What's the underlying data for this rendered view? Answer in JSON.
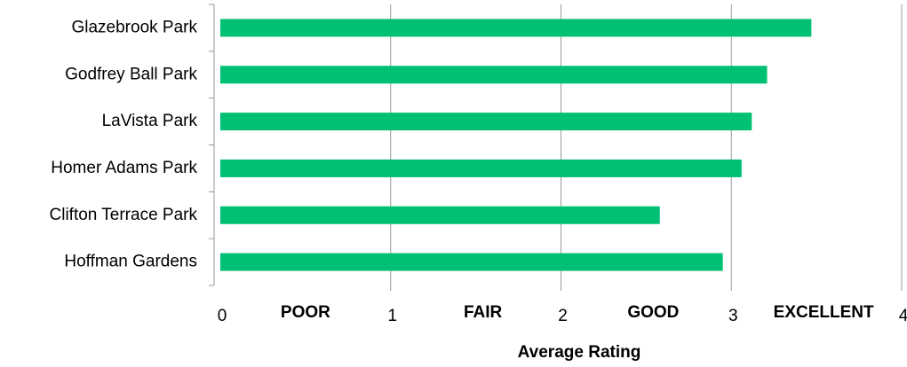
{
  "chart_data": {
    "type": "hbar",
    "categories": [
      "Glazebrook Park",
      "Godfrey Ball Park",
      "LaVista Park",
      "Homer Adams Park",
      "Clifton Terrace Park",
      "Hoffman Gardens"
    ],
    "values": [
      3.47,
      3.21,
      3.12,
      3.06,
      2.58,
      2.95
    ],
    "color": "#00c073",
    "xlim": [
      0,
      4
    ],
    "xticks": [
      0,
      1,
      2,
      3,
      4
    ],
    "grid": true,
    "annotations": [
      "POOR",
      "FAIR",
      "GOOD",
      "EXCELLENT"
    ],
    "x_label": "Average Rating"
  }
}
